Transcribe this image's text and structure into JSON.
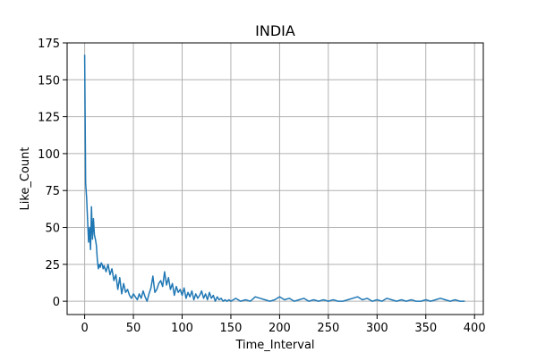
{
  "chart_data": {
    "type": "line",
    "title": "INDIA",
    "xlabel": "Time_Interval",
    "ylabel": "Like_Count",
    "xlim": [
      -18,
      409
    ],
    "ylim": [
      -9,
      175
    ],
    "xticks": [
      0,
      50,
      100,
      150,
      200,
      250,
      300,
      350,
      400
    ],
    "yticks": [
      0,
      25,
      50,
      75,
      100,
      125,
      150,
      175
    ],
    "xtick_labels": [
      "0",
      "50",
      "100",
      "150",
      "200",
      "250",
      "300",
      "350",
      "400"
    ],
    "ytick_labels": [
      "0",
      "25",
      "50",
      "75",
      "100",
      "125",
      "150",
      "175"
    ],
    "grid": true,
    "line_color": "#1f77b4",
    "series": [
      {
        "x": [
          0,
          1,
          2,
          3,
          4,
          5,
          6,
          7,
          8,
          9,
          10,
          11,
          12,
          13,
          14,
          15,
          16,
          17,
          18,
          19,
          20,
          22,
          24,
          26,
          28,
          30,
          32,
          34,
          36,
          38,
          40,
          42,
          44,
          46,
          48,
          50,
          52,
          54,
          56,
          58,
          60,
          62,
          64,
          66,
          68,
          70,
          72,
          74,
          76,
          78,
          80,
          82,
          84,
          86,
          88,
          90,
          92,
          94,
          96,
          98,
          100,
          102,
          104,
          106,
          108,
          110,
          112,
          114,
          116,
          118,
          120,
          122,
          124,
          126,
          128,
          130,
          132,
          134,
          136,
          138,
          140,
          142,
          144,
          146,
          148,
          150,
          155,
          160,
          165,
          170,
          175,
          180,
          185,
          190,
          195,
          200,
          205,
          210,
          215,
          220,
          225,
          230,
          235,
          240,
          245,
          250,
          255,
          260,
          265,
          270,
          275,
          280,
          285,
          290,
          295,
          300,
          305,
          310,
          315,
          320,
          325,
          330,
          335,
          340,
          345,
          350,
          355,
          360,
          365,
          370,
          375,
          380,
          385,
          390
        ],
        "y": [
          167,
          80,
          70,
          55,
          40,
          50,
          35,
          64,
          42,
          56,
          45,
          42,
          38,
          28,
          22,
          25,
          23,
          26,
          25,
          22,
          24,
          20,
          25,
          18,
          22,
          14,
          18,
          8,
          16,
          5,
          12,
          6,
          8,
          4,
          2,
          5,
          3,
          1,
          5,
          2,
          7,
          3,
          0,
          5,
          9,
          17,
          6,
          8,
          12,
          14,
          10,
          20,
          11,
          16,
          8,
          12,
          4,
          10,
          6,
          8,
          4,
          9,
          2,
          6,
          3,
          7,
          1,
          5,
          2,
          4,
          7,
          2,
          5,
          1,
          6,
          2,
          4,
          0,
          3,
          1,
          2,
          0,
          1,
          0,
          1,
          0,
          2,
          0,
          1,
          0,
          3,
          2,
          1,
          0,
          1,
          3,
          1,
          2,
          0,
          1,
          2,
          0,
          1,
          0,
          1,
          0,
          1,
          0,
          0,
          1,
          2,
          3,
          1,
          2,
          0,
          1,
          0,
          2,
          1,
          0,
          1,
          0,
          1,
          0,
          0,
          1,
          0,
          1,
          2,
          1,
          0,
          1,
          0,
          0
        ]
      }
    ]
  }
}
